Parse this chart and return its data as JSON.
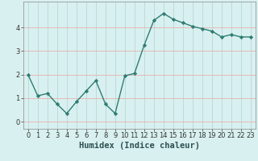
{
  "title": "",
  "xlabel": "Humidex (Indice chaleur)",
  "ylabel": "",
  "x": [
    0,
    1,
    2,
    3,
    4,
    5,
    6,
    7,
    8,
    9,
    10,
    11,
    12,
    13,
    14,
    15,
    16,
    17,
    18,
    19,
    20,
    21,
    22,
    23
  ],
  "y": [
    2.0,
    1.1,
    1.2,
    0.75,
    0.35,
    0.85,
    1.3,
    1.75,
    0.75,
    0.35,
    1.95,
    2.05,
    3.25,
    4.3,
    4.6,
    4.35,
    4.2,
    4.05,
    3.95,
    3.85,
    3.6,
    3.7,
    3.6,
    3.6
  ],
  "line_color": "#2e7d72",
  "marker": "D",
  "marker_size": 2.2,
  "bg_color": "#d9f0f0",
  "grid_color": "#b8d8d8",
  "red_grid_color": "#e8b0b0",
  "ylim": [
    -0.3,
    5.1
  ],
  "xlim": [
    -0.5,
    23.5
  ],
  "yticks": [
    0,
    1,
    2,
    3,
    4
  ],
  "xticks": [
    0,
    1,
    2,
    3,
    4,
    5,
    6,
    7,
    8,
    9,
    10,
    11,
    12,
    13,
    14,
    15,
    16,
    17,
    18,
    19,
    20,
    21,
    22,
    23
  ],
  "tick_fontsize": 6,
  "xlabel_fontsize": 7.5,
  "line_width": 1.0
}
